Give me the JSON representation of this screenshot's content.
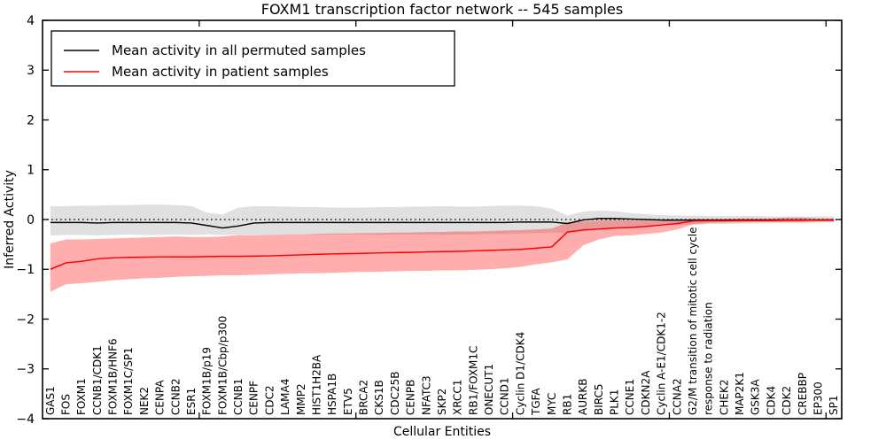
{
  "chart_data": {
    "type": "line",
    "title": "FOXM1 transcription factor network -- 545 samples",
    "xlabel": "Cellular Entities",
    "ylabel": "Inferred Activity",
    "ylim": [
      -4,
      4
    ],
    "yticks": [
      -4,
      -3,
      -2,
      -1,
      0,
      1,
      2,
      3,
      4
    ],
    "xticks_data_units": [
      10,
      20,
      30,
      40,
      50
    ],
    "grid": false,
    "zero_reference_line": true,
    "legend_position": "upper left",
    "categories": [
      "GAS1",
      "FOS",
      "FOXM1",
      "CCNB1/CDK1",
      "FOXM1B/HNF6",
      "FOXM1C/SP1",
      "NEK2",
      "CENPA",
      "CCNB2",
      "ESR1",
      "FOXM1B/p19",
      "FOXM1B/Cbp/p300",
      "CCNB1",
      "CENPF",
      "CDC2",
      "LAMA4",
      "MMP2",
      "HIST1H2BA",
      "HSPA1B",
      "ETV5",
      "BRCA2",
      "CKS1B",
      "CDC25B",
      "CENPB",
      "NFATC3",
      "SKP2",
      "XRCC1",
      "RB1/FOXM1C",
      "ONECUT1",
      "CCND1",
      "Cyclin D1/CDK4",
      "TGFA",
      "MYC",
      "RB1",
      "AURKB",
      "BIRC5",
      "PLK1",
      "CCNE1",
      "CDKN2A",
      "Cyclin A-E1/CDK1-2",
      "CCNA2",
      "G2/M transition of mitotic cell cycle",
      "response to radiation",
      "CHEK2",
      "MAP2K1",
      "GSK3A",
      "CDK4",
      "CDK2",
      "CREBBP",
      "EP300",
      "SP1"
    ],
    "series": [
      {
        "id": "permuted",
        "name": "Mean activity in all permuted samples",
        "color": "#000000",
        "band_fill": "rgba(0,0,0,0.12)",
        "values": [
          -0.06,
          -0.06,
          -0.06,
          -0.07,
          -0.06,
          -0.06,
          -0.06,
          -0.06,
          -0.06,
          -0.07,
          -0.12,
          -0.17,
          -0.13,
          -0.07,
          -0.06,
          -0.06,
          -0.06,
          -0.06,
          -0.06,
          -0.06,
          -0.06,
          -0.06,
          -0.06,
          -0.06,
          -0.06,
          -0.06,
          -0.06,
          -0.06,
          -0.06,
          -0.06,
          -0.05,
          -0.05,
          -0.05,
          -0.08,
          -0.01,
          0.02,
          0.02,
          0.01,
          0.0,
          -0.01,
          -0.01,
          -0.01,
          -0.01,
          -0.01,
          -0.01,
          -0.01,
          -0.01,
          -0.01,
          -0.01,
          -0.01,
          -0.01
        ],
        "band_upper": [
          0.27,
          0.27,
          0.28,
          0.28,
          0.29,
          0.29,
          0.3,
          0.3,
          0.29,
          0.27,
          0.14,
          0.1,
          0.24,
          0.27,
          0.27,
          0.26,
          0.25,
          0.25,
          0.24,
          0.24,
          0.24,
          0.25,
          0.25,
          0.26,
          0.26,
          0.27,
          0.26,
          0.26,
          0.27,
          0.28,
          0.28,
          0.27,
          0.22,
          0.08,
          0.16,
          0.18,
          0.17,
          0.13,
          0.11,
          0.09,
          0.08,
          0.08,
          0.07,
          0.07,
          0.07,
          0.07,
          0.06,
          0.06,
          0.06,
          0.06,
          0.06
        ],
        "band_lower": [
          -0.32,
          -0.31,
          -0.31,
          -0.32,
          -0.31,
          -0.3,
          -0.31,
          -0.31,
          -0.3,
          -0.31,
          -0.3,
          -0.31,
          -0.3,
          -0.3,
          -0.31,
          -0.3,
          -0.3,
          -0.31,
          -0.3,
          -0.3,
          -0.3,
          -0.31,
          -0.3,
          -0.3,
          -0.3,
          -0.31,
          -0.3,
          -0.3,
          -0.29,
          -0.29,
          -0.28,
          -0.27,
          -0.26,
          -0.28,
          -0.24,
          -0.21,
          -0.19,
          -0.16,
          -0.14,
          -0.12,
          -0.11,
          -0.1,
          -0.09,
          -0.09,
          -0.08,
          -0.08,
          -0.07,
          -0.07,
          -0.07,
          -0.06,
          -0.06
        ]
      },
      {
        "id": "patient",
        "name": "Mean activity in patient samples",
        "color": "#ff0000",
        "band_fill": "rgba(255,0,0,0.32)",
        "values": [
          -1.0,
          -0.87,
          -0.84,
          -0.79,
          -0.77,
          -0.76,
          -0.755,
          -0.75,
          -0.75,
          -0.75,
          -0.745,
          -0.74,
          -0.74,
          -0.735,
          -0.73,
          -0.72,
          -0.71,
          -0.7,
          -0.69,
          -0.685,
          -0.68,
          -0.67,
          -0.665,
          -0.66,
          -0.65,
          -0.645,
          -0.64,
          -0.63,
          -0.62,
          -0.61,
          -0.6,
          -0.575,
          -0.55,
          -0.25,
          -0.21,
          -0.19,
          -0.17,
          -0.16,
          -0.14,
          -0.11,
          -0.08,
          -0.03,
          -0.025,
          -0.025,
          -0.02,
          -0.02,
          -0.02,
          -0.015,
          -0.015,
          -0.01,
          -0.01
        ],
        "band_upper": [
          -0.48,
          -0.4,
          -0.4,
          -0.39,
          -0.38,
          -0.37,
          -0.36,
          -0.35,
          -0.34,
          -0.35,
          -0.35,
          -0.34,
          -0.31,
          -0.31,
          -0.31,
          -0.3,
          -0.3,
          -0.29,
          -0.28,
          -0.28,
          -0.27,
          -0.27,
          -0.26,
          -0.26,
          -0.25,
          -0.25,
          -0.24,
          -0.24,
          -0.23,
          -0.22,
          -0.21,
          -0.2,
          -0.18,
          -0.06,
          -0.04,
          -0.02,
          -0.01,
          -0.02,
          -0.02,
          -0.02,
          -0.01,
          0.01,
          0.01,
          0.01,
          0.02,
          0.02,
          0.02,
          0.04,
          0.04,
          0.02,
          0.02
        ],
        "band_lower": [
          -1.45,
          -1.3,
          -1.28,
          -1.25,
          -1.22,
          -1.2,
          -1.18,
          -1.17,
          -1.15,
          -1.14,
          -1.13,
          -1.12,
          -1.12,
          -1.11,
          -1.1,
          -1.09,
          -1.08,
          -1.08,
          -1.07,
          -1.06,
          -1.05,
          -1.05,
          -1.04,
          -1.03,
          -1.03,
          -1.02,
          -1.02,
          -1.01,
          -1.0,
          -0.98,
          -0.95,
          -0.9,
          -0.86,
          -0.8,
          -0.52,
          -0.4,
          -0.33,
          -0.32,
          -0.29,
          -0.26,
          -0.2,
          -0.1,
          -0.07,
          -0.06,
          -0.06,
          -0.05,
          -0.05,
          -0.05,
          -0.05,
          -0.04,
          -0.04
        ]
      }
    ]
  }
}
